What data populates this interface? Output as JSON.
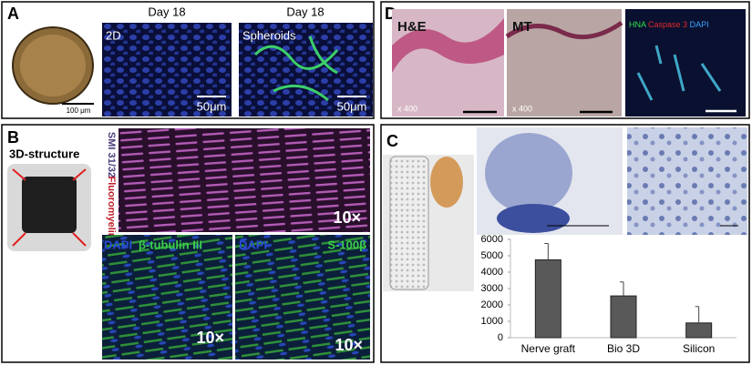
{
  "panels": {
    "a": {
      "label": "A",
      "scale_sphere": "100 μm",
      "day_2d": "Day 18",
      "day_sph": "Day 18",
      "tag_2d": "2D",
      "tag_sph": "Spheroids",
      "scale_2d": "50μm",
      "scale_sph": "50μm"
    },
    "d": {
      "label": "D",
      "he": "H&E",
      "mt": "MT",
      "mag_he": "x 400",
      "mag_mt": "x 400",
      "hna": "HNA",
      "casp": "Caspase 3",
      "dapi": "DAPI"
    },
    "b": {
      "label": "B",
      "structure": "3D-structure",
      "smi": "SMI 31/32",
      "fluoro": "Fluoromyelin",
      "mag_top": "10×",
      "dapi_1": "DAPI",
      "tubulin": "β-tubulin III",
      "dapi_2": "DAPI",
      "s100": "S-100β",
      "mag_left": "10×",
      "mag_right": "10×"
    },
    "c": {
      "label": "C"
    }
  },
  "chart_data": {
    "type": "bar",
    "categories": [
      "Nerve graft",
      "Bio 3D",
      "Silicon"
    ],
    "values": [
      4750,
      2550,
      900
    ],
    "errors": [
      1000,
      850,
      1000
    ],
    "color": "#595959",
    "ylim": [
      0,
      6000
    ],
    "yticks": [
      0,
      1000,
      2000,
      3000,
      4000,
      5000,
      6000
    ]
  }
}
